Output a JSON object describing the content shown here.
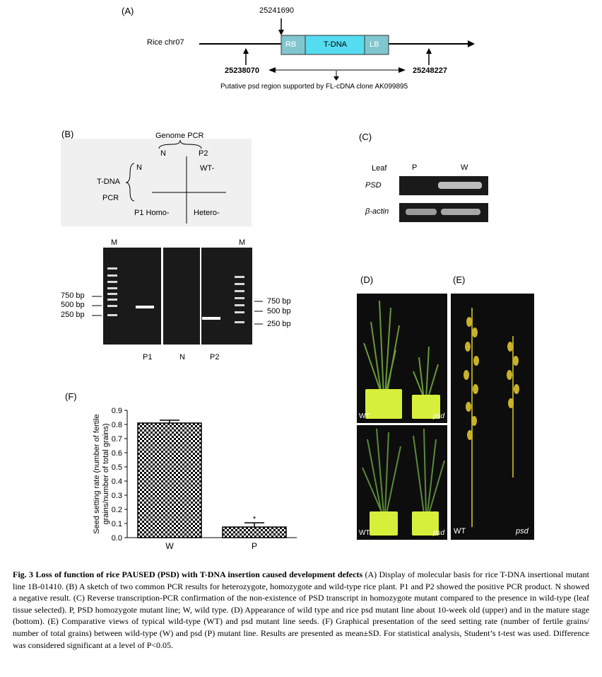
{
  "panelA": {
    "label": "(A)",
    "chr_label": "Rice chr07",
    "pos_insert": "25241690",
    "pos_left": "25238070",
    "pos_right": "25248227",
    "rb": "RB",
    "tdna": "T-DNA",
    "lb": "LB",
    "region_note": "Putative psd region supported by FL-cDNA clone AK099895"
  },
  "panelB": {
    "label": "(B)",
    "genome_pcr": "Genome PCR",
    "col_n": "N",
    "col_p2": "P2",
    "tdna": "T-DNA",
    "pcr": "PCR",
    "row_n": "N",
    "wt": "WT-",
    "p1homo": "P1 Homo-",
    "hetero": "Hetero-",
    "gel": {
      "m_left": "M",
      "m_right": "M",
      "ladder_left": [
        "750 bp",
        "500 bp",
        "250 bp"
      ],
      "ladder_right": [
        "750 bp",
        "500 bp",
        "250 bp"
      ],
      "lanes": [
        "P1",
        "N",
        "P2"
      ]
    }
  },
  "panelC": {
    "label": "(C)",
    "leaf": "Leaf",
    "col_p": "P",
    "col_w": "W",
    "gene1": "PSD",
    "gene2": "β-actin"
  },
  "panelD": {
    "label": "(D)",
    "wt_top": "WT",
    "psd_top": "psd",
    "wt_bottom": "WT",
    "psd_bottom": "psd"
  },
  "panelE": {
    "label": "(E)",
    "wt": "WT",
    "psd": "psd"
  },
  "panelF": {
    "label": "(F)",
    "star": "*"
  },
  "chart_data": {
    "type": "bar",
    "categories": [
      "W",
      "P"
    ],
    "values": [
      0.81,
      0.075
    ],
    "errors": [
      0.02,
      0.03
    ],
    "ylabel": "Seed setting rate (number of fertile grains/number of total grains)",
    "ylim": [
      0,
      0.9
    ],
    "yticks": [
      "0.0",
      "0.1",
      "0.2",
      "0.3",
      "0.4",
      "0.5",
      "0.6",
      "0.7",
      "0.8",
      "0.9"
    ]
  },
  "caption": {
    "title": "Fig. 3 Loss of function of rice PAUSED (PSD) with T-DNA insertion caused development defects",
    "body": "(A) Display of molecular basis for rice T-DNA insertional mutant line 1B-01410. (B) A sketch of two common PCR results for heterozygote, homozygote and wild-type rice plant. P1 and P2 showed the positive PCR product. N showed a negative result. (C) Reverse transcription-PCR confirmation of the non-existence of PSD transcript in homozygote mutant compared to the presence in wild-type (leaf tissue selected). P, PSD homozygote mutant line; W, wild type. (D) Appearance of wild type and rice psd mutant line about 10-week old (upper) and in the mature stage (bottom). (E) Comparative views of typical wild-type (WT) and psd mutant line seeds. (F) Graphical presentation of the seed setting rate (number of fertile grains/ number of total grains) between wild-type (W) and psd (P) mutant line. Results are presented as mean±SD. For statistical analysis, Student’s t-test was used. Difference was considered significant at a level of P<0.05."
  }
}
